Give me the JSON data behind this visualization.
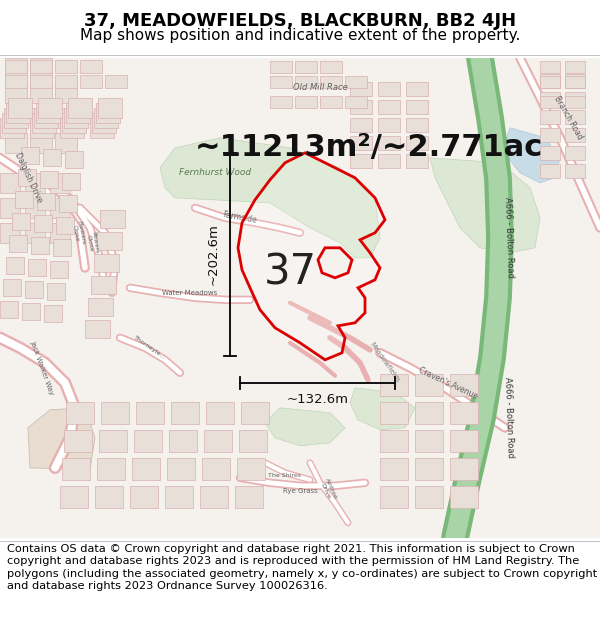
{
  "title": "37, MEADOWFIELDS, BLACKBURN, BB2 4JH",
  "subtitle": "Map shows position and indicative extent of the property.",
  "area_label": "~11213m²/~2.771ac",
  "plot_number": "37",
  "dim_width": "~132.6m",
  "dim_height": "~202.6m",
  "footer": "Contains OS data © Crown copyright and database right 2021. This information is subject to Crown copyright and database rights 2023 and is reproduced with the permission of HM Land Registry. The polygons (including the associated geometry, namely x, y co-ordinates) are subject to Crown copyright and database rights 2023 Ordnance Survey 100026316.",
  "map_bg": "#f5f2ee",
  "road_outline": "#e8b0b0",
  "road_fill": "#ffffff",
  "green_road": "#8dc88d",
  "green_road_inner": "#c8e8c8",
  "water_color": "#c8dce8",
  "green_area": "#d8e8d0",
  "property_edge": "#dd0000",
  "property_lw": 2.0,
  "building_fill": "#e8e0d8",
  "building_edge": "#d8b0b0",
  "title_fontsize": 13,
  "subtitle_fontsize": 11,
  "footer_fontsize": 8.2,
  "area_fontsize": 22,
  "plot_num_fontsize": 30,
  "dim_fontsize": 9.5
}
